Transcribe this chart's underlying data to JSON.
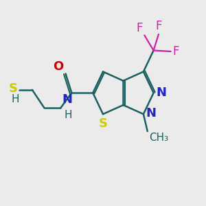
{
  "bg_color": "#ebebeb",
  "bond_color": "#1a6060",
  "S_color": "#cccc00",
  "N_color": "#2222cc",
  "O_color": "#cc0000",
  "F_color": "#cc22aa",
  "font_size": 12,
  "lw": 1.8,
  "xlim": [
    0,
    10
  ],
  "ylim": [
    0,
    10
  ]
}
